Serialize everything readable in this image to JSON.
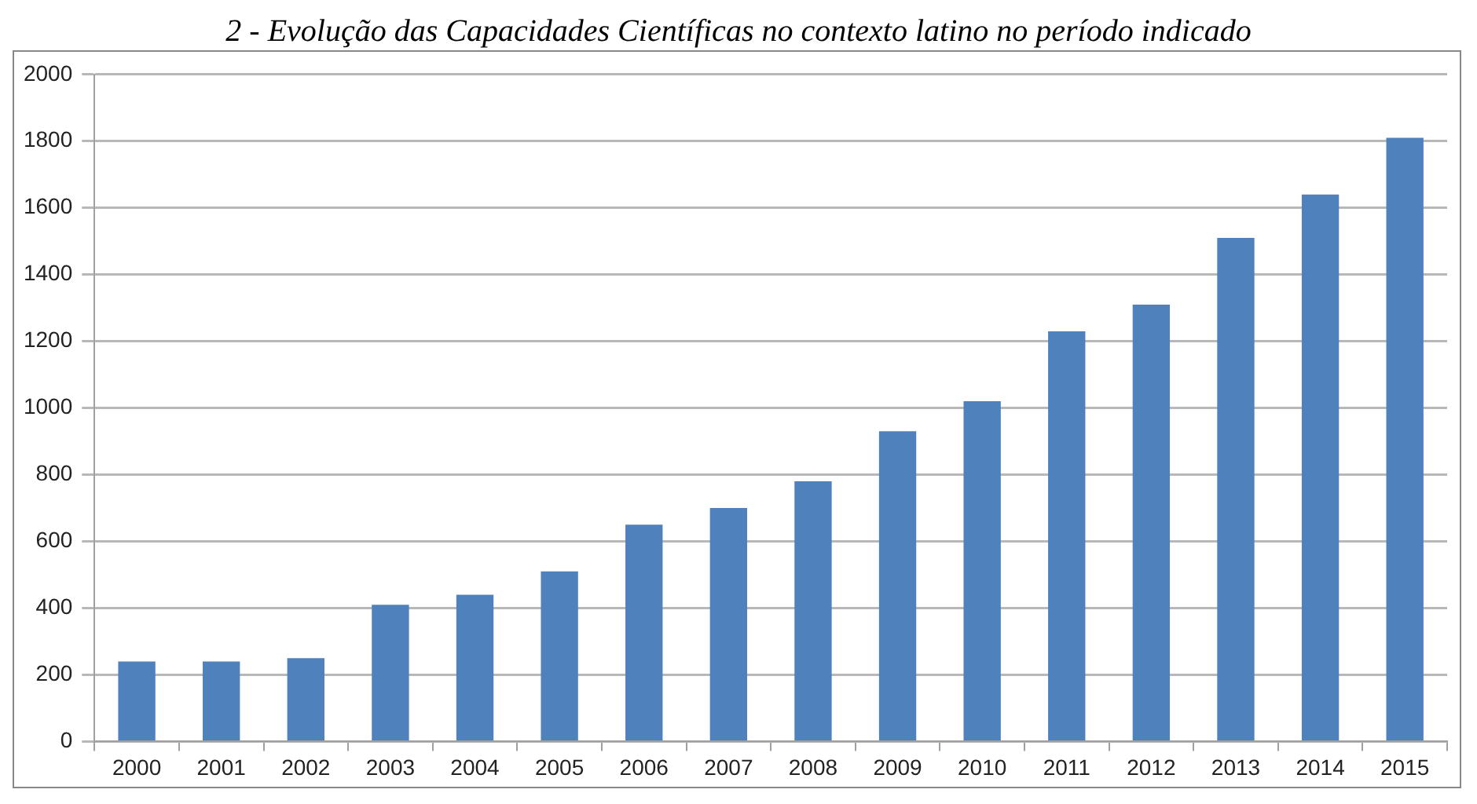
{
  "chart_data": {
    "type": "bar",
    "title": "2 - Evolução das Capacidades Científicas no contexto latino no período indicado",
    "categories": [
      "2000",
      "2001",
      "2002",
      "2003",
      "2004",
      "2005",
      "2006",
      "2007",
      "2008",
      "2009",
      "2010",
      "2011",
      "2012",
      "2013",
      "2014",
      "2015"
    ],
    "values": [
      240,
      240,
      250,
      410,
      440,
      510,
      650,
      700,
      780,
      930,
      1020,
      1230,
      1310,
      1510,
      1640,
      1810
    ],
    "color": "#4f81bd",
    "ylim": [
      0,
      2000
    ],
    "yticks": [
      0,
      200,
      400,
      600,
      800,
      1000,
      1200,
      1400,
      1600,
      1800,
      2000
    ],
    "grid": "y",
    "legend": false
  }
}
